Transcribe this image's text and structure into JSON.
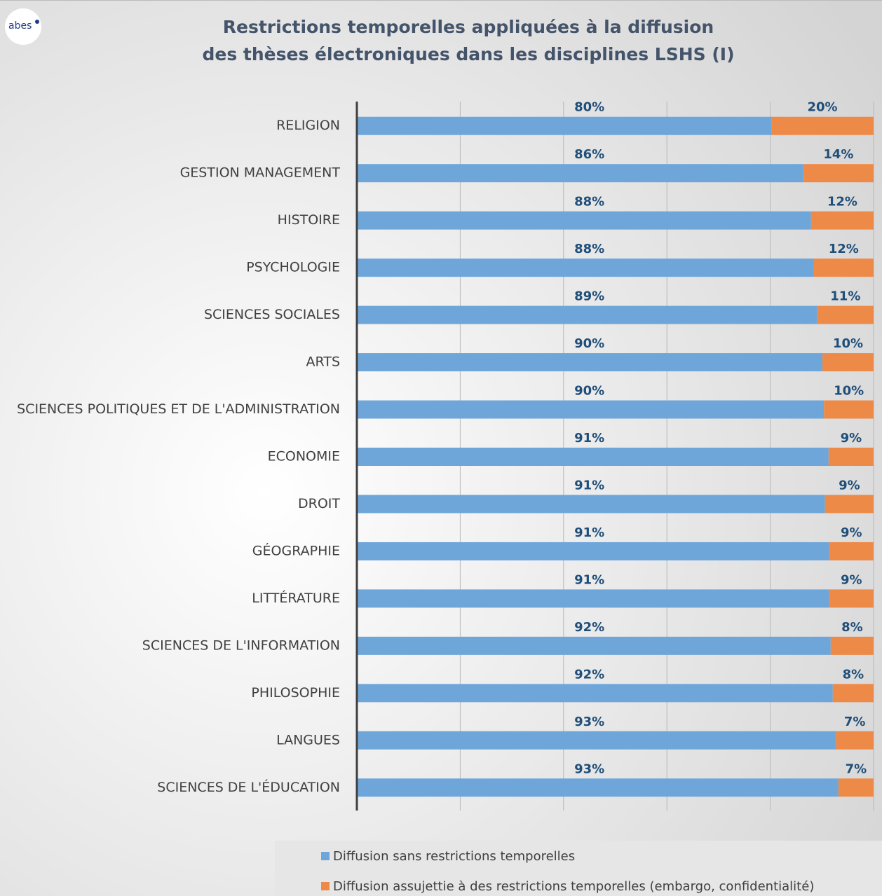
{
  "logo": "abes",
  "chart_data": {
    "type": "stacked_barh",
    "title": [
      "Restrictions temporelles appliquées à la diffusion",
      "des thèses électroniques dans les disciplines LSHS (I)"
    ],
    "categories": [
      "RELIGION",
      "GESTION MANAGEMENT",
      "HISTOIRE",
      "PSYCHOLOGIE",
      "SCIENCES SOCIALES",
      "ARTS",
      "SCIENCES POLITIQUES ET DE L'ADMINISTRATION",
      "ECONOMIE",
      "DROIT",
      "GÉOGRAPHIE",
      "LITTÉRATURE",
      "SCIENCES DE L'INFORMATION",
      "PHILOSOPHIE",
      "LANGUES",
      "SCIENCES DE L'ÉDUCATION"
    ],
    "series": [
      {
        "name": "Diffusion sans restrictions temporelles",
        "color": "#6fa6da",
        "values": [
          80.2,
          86.4,
          87.9,
          88.4,
          89.1,
          90.1,
          90.4,
          91.3,
          90.6,
          91.4,
          91.4,
          91.7,
          92.1,
          92.7,
          93.2
        ],
        "value_labels": [
          "80%",
          "86%",
          "88%",
          "88%",
          "89%",
          "90%",
          "90%",
          "91%",
          "91%",
          "91%",
          "91%",
          "92%",
          "92%",
          "93%",
          "93%"
        ]
      },
      {
        "name": "Diffusion assujettie à des restrictions temporelles (embargo, confidentialité)",
        "color": "#ee8a48",
        "values": [
          19.8,
          13.6,
          12.1,
          11.6,
          10.9,
          9.9,
          9.6,
          8.7,
          9.4,
          8.6,
          8.6,
          8.3,
          7.9,
          7.3,
          6.8
        ],
        "value_labels": [
          "20%",
          "14%",
          "12%",
          "12%",
          "11%",
          "10%",
          "10%",
          "9%",
          "9%",
          "9%",
          "9%",
          "8%",
          "8%",
          "7%",
          "7%"
        ]
      }
    ],
    "xlim": [
      0,
      100
    ],
    "xticks": [
      0,
      20,
      40,
      60,
      80,
      100
    ],
    "grid": true
  }
}
